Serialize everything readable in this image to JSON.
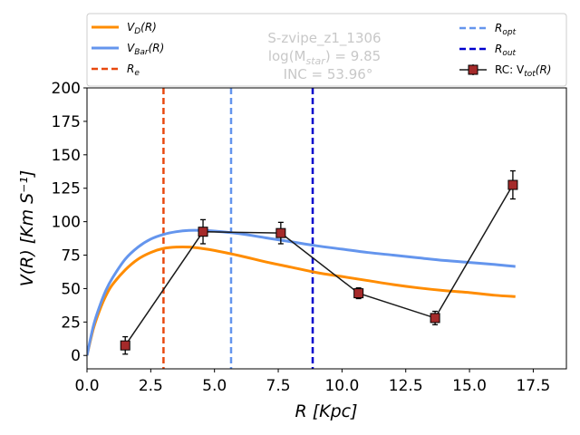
{
  "chart_data": {
    "type": "line",
    "title": "",
    "xlabel": "R [Kpc]",
    "ylabel": "V(R) [Km S⁻¹]",
    "xlim": [
      0,
      18.8
    ],
    "ylim": [
      -10,
      200
    ],
    "xticks": [
      0.0,
      2.5,
      5.0,
      7.5,
      10.0,
      12.5,
      15.0,
      17.5
    ],
    "xtick_labels": [
      "0.0",
      "2.5",
      "5.0",
      "7.5",
      "10.0",
      "12.5",
      "15.0",
      "17.5"
    ],
    "yticks": [
      0,
      25,
      50,
      75,
      100,
      125,
      150,
      175,
      200
    ],
    "ytick_labels": [
      "0",
      "25",
      "50",
      "75",
      "100",
      "125",
      "150",
      "175",
      "200"
    ],
    "annotations": {
      "galaxy_name": "S-zvipe_z1_1306",
      "mass": "log(M",
      "mass_sub": "star",
      "mass_value": ") = 9.85",
      "inclination": "INC = 53.96°"
    },
    "legend": [
      {
        "id": "vd",
        "label": "V",
        "sub": "D",
        "suffix": "(R)",
        "color": "#ff8c00",
        "style": "solid"
      },
      {
        "id": "vbar",
        "label": "V",
        "sub": "Bar",
        "suffix": "(R)",
        "color": "#6495ed",
        "style": "solid"
      },
      {
        "id": "re",
        "label": "R",
        "sub": "e",
        "suffix": "",
        "color": "#e8490f",
        "style": "dashed"
      },
      {
        "id": "ropt",
        "label": "R",
        "sub": "opt",
        "suffix": "",
        "color": "#6495ed",
        "style": "dashed"
      },
      {
        "id": "rout",
        "label": "R",
        "sub": "out",
        "suffix": "",
        "color": "#0000cd",
        "style": "dashed"
      },
      {
        "id": "rc",
        "label": "RC: V",
        "sub": "tot",
        "suffix": "(R)",
        "color": "#a52a2a",
        "style": "marker"
      }
    ],
    "vlines": [
      {
        "name": "R_e",
        "x": 3.0,
        "color": "#e8490f"
      },
      {
        "name": "R_opt",
        "x": 5.65,
        "color": "#6495ed"
      },
      {
        "name": "R_out",
        "x": 8.85,
        "color": "#0000cd"
      }
    ],
    "series": [
      {
        "name": "V_D(R)",
        "color": "#ff8c00",
        "x": [
          0.0,
          0.25,
          0.5,
          0.75,
          1.0,
          1.5,
          2.0,
          2.5,
          3.0,
          3.5,
          4.0,
          4.5,
          5.0,
          6.0,
          7.0,
          8.0,
          9.0,
          10.0,
          11.0,
          12.0,
          13.0,
          14.0,
          15.0,
          16.0,
          16.8
        ],
        "values": [
          0,
          20,
          34,
          45,
          53,
          64,
          72,
          77,
          80,
          81,
          81,
          80,
          78.5,
          74.5,
          70,
          66,
          62,
          59,
          56,
          53,
          50.5,
          48.5,
          47,
          45,
          44
        ]
      },
      {
        "name": "V_Bar(R)",
        "color": "#6495ed",
        "x": [
          0.0,
          0.25,
          0.5,
          0.75,
          1.0,
          1.5,
          2.0,
          2.5,
          3.0,
          3.5,
          4.0,
          4.5,
          5.0,
          6.0,
          7.0,
          8.0,
          9.0,
          10.0,
          11.0,
          12.0,
          13.0,
          14.0,
          15.0,
          16.0,
          16.8
        ],
        "values": [
          0,
          22,
          37,
          49,
          58,
          72,
          81,
          87,
          90.5,
          92.5,
          93.5,
          93.5,
          93,
          91,
          88,
          85,
          82,
          79.5,
          77,
          75,
          73,
          71,
          69.5,
          68,
          66.5
        ]
      },
      {
        "name": "RC: V_tot(R)",
        "color": "#a52a2a",
        "x": [
          1.5,
          4.55,
          7.6,
          10.65,
          13.65,
          16.7
        ],
        "values": [
          7.5,
          92.5,
          91.5,
          46.5,
          28,
          127.5
        ],
        "errors": [
          6.5,
          9,
          8,
          4,
          5,
          10.5
        ]
      }
    ]
  }
}
